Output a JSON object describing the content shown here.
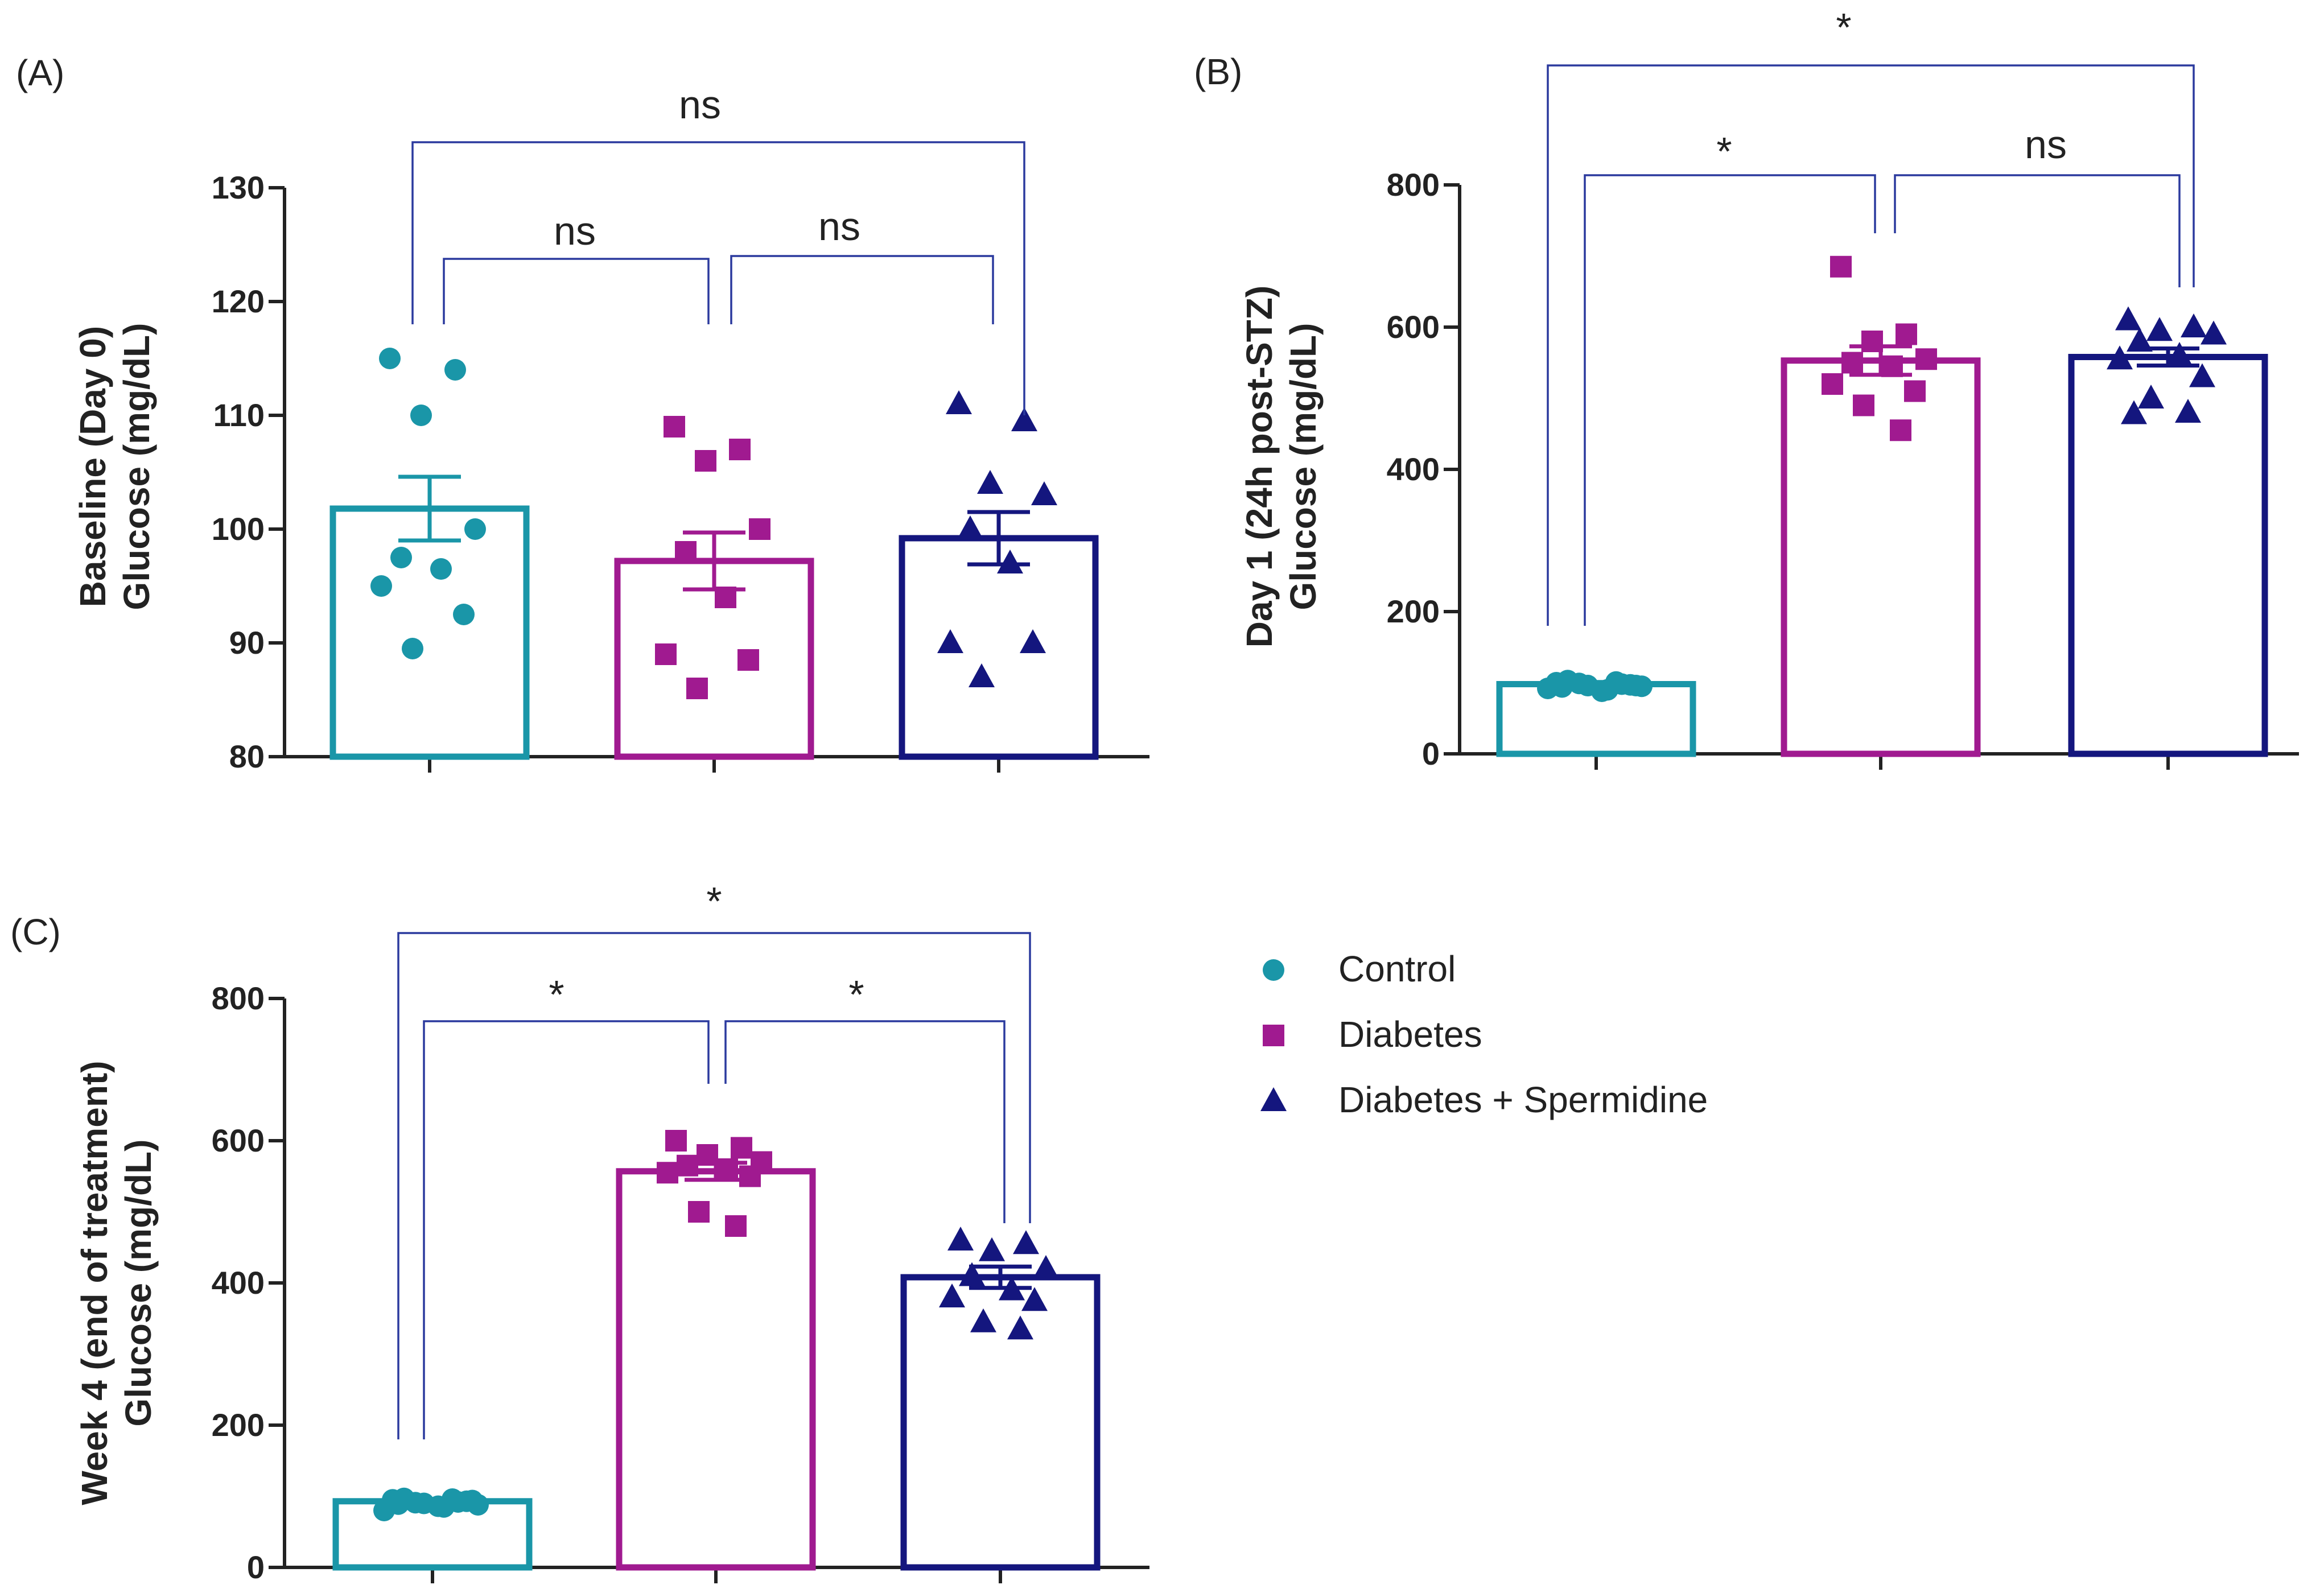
{
  "chart_data": [
    {
      "panel_label": "(A)",
      "type": "bar",
      "categories": [
        "Control",
        "Diabetes",
        "Diabetes + Spermidine"
      ],
      "ylabel": [
        "Baseline (Day 0)",
        "Glucose (mg/dL)"
      ],
      "ylim": [
        80,
        130
      ],
      "yticks": [
        80,
        90,
        100,
        110,
        120,
        130
      ],
      "means": [
        101.8,
        97.2,
        99.2
      ],
      "sem": [
        2.8,
        2.5,
        2.3
      ],
      "points": [
        [
          115,
          114,
          110,
          100,
          97.5,
          96.5,
          95,
          92.5,
          89.5
        ],
        [
          109,
          107,
          106,
          100,
          98,
          94,
          89,
          88.5,
          86
        ],
        [
          111,
          109.5,
          104,
          103,
          100,
          97,
          90,
          90,
          87
        ]
      ],
      "comparisons": [
        {
          "from": 0,
          "to": 1,
          "label": "ns"
        },
        {
          "from": 1,
          "to": 2,
          "label": "ns"
        },
        {
          "from": 0,
          "to": 2,
          "label": "ns"
        }
      ]
    },
    {
      "panel_label": "(B)",
      "type": "bar",
      "categories": [
        "Control",
        "Diabetes",
        "Diabetes + Spermidine"
      ],
      "ylabel": [
        "Day 1 (24h post-STZ)",
        "Glucose  (mg/dL)"
      ],
      "ylim": [
        0,
        800
      ],
      "yticks": [
        0,
        200,
        400,
        600,
        800
      ],
      "means": [
        98,
        553,
        558
      ],
      "sem": [
        3,
        20,
        12
      ],
      "points": [
        [
          100,
          98,
          96,
          95,
          103,
          90,
          92,
          97,
          99,
          101,
          94,
          88,
          96
        ],
        [
          685,
          590,
          580,
          555,
          550,
          545,
          520,
          510,
          490,
          455
        ],
        [
          610,
          600,
          595,
          590,
          580,
          560,
          555,
          530,
          500,
          480,
          478
        ]
      ],
      "comparisons": [
        {
          "from": 0,
          "to": 1,
          "label": "*"
        },
        {
          "from": 1,
          "to": 2,
          "label": "ns"
        },
        {
          "from": 0,
          "to": 2,
          "label": "*"
        }
      ]
    },
    {
      "panel_label": "(C)",
      "type": "bar",
      "categories": [
        "Control",
        "Diabetes",
        "Diabetes + Spermidine"
      ],
      "ylabel": [
        "Week 4 (end of treatment)",
        "Glucose (mg/dL)"
      ],
      "ylim": [
        0,
        800
      ],
      "yticks": [
        0,
        200,
        400,
        600,
        800
      ],
      "means": [
        93,
        557,
        408
      ],
      "sem": [
        3,
        12,
        15
      ],
      "points": [
        [
          95,
          92,
          90,
          88,
          97,
          85,
          80,
          93,
          91,
          96,
          89,
          86,
          94
        ],
        [
          600,
          590,
          580,
          570,
          565,
          560,
          555,
          550,
          500,
          480
        ],
        [
          460,
          455,
          445,
          420,
          410,
          390,
          380,
          375,
          345,
          335
        ]
      ],
      "comparisons": [
        {
          "from": 0,
          "to": 1,
          "label": "*"
        },
        {
          "from": 1,
          "to": 2,
          "label": "*"
        },
        {
          "from": 0,
          "to": 2,
          "label": "*"
        }
      ]
    }
  ],
  "legend": [
    {
      "label": "Control",
      "marker": "circle"
    },
    {
      "label": "Diabetes",
      "marker": "square"
    },
    {
      "label": "Diabetes + Spermidine",
      "marker": "triangle"
    }
  ],
  "colors": {
    "control": "#1a96a8",
    "diabetes": "#a01a90",
    "spermidine": "#14167e",
    "bracket": "#2b3a9e",
    "axis": "#222222"
  }
}
